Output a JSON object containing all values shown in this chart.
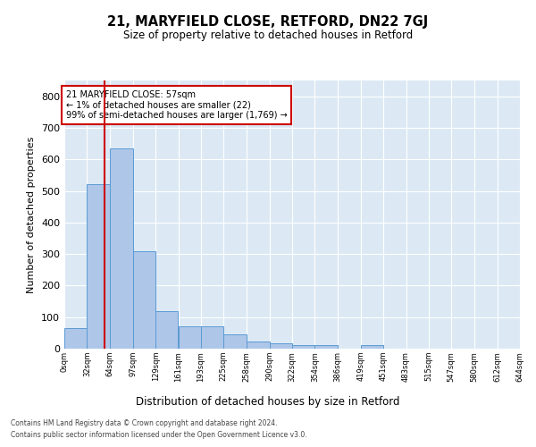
{
  "title": "21, MARYFIELD CLOSE, RETFORD, DN22 7GJ",
  "subtitle": "Size of property relative to detached houses in Retford",
  "xlabel": "Distribution of detached houses by size in Retford",
  "ylabel": "Number of detached properties",
  "footer_line1": "Contains HM Land Registry data © Crown copyright and database right 2024.",
  "footer_line2": "Contains public sector information licensed under the Open Government Licence v3.0.",
  "annotation_title": "21 MARYFIELD CLOSE: 57sqm",
  "annotation_line2": "← 1% of detached houses are smaller (22)",
  "annotation_line3": "99% of semi-detached houses are larger (1,769) →",
  "property_size": 57,
  "bar_color": "#aec6e8",
  "bar_edge_color": "#5b9bd5",
  "marker_color": "#cc0000",
  "annotation_box_color": "#cc0000",
  "bg_color": "#dce9f5",
  "bins": [
    0,
    32,
    64,
    97,
    129,
    161,
    193,
    225,
    258,
    290,
    322,
    354,
    386,
    419,
    451,
    483,
    515,
    547,
    580,
    612,
    644
  ],
  "bin_labels": [
    "0sqm",
    "32sqm",
    "64sqm",
    "97sqm",
    "129sqm",
    "161sqm",
    "193sqm",
    "225sqm",
    "258sqm",
    "290sqm",
    "322sqm",
    "354sqm",
    "386sqm",
    "419sqm",
    "451sqm",
    "483sqm",
    "515sqm",
    "547sqm",
    "580sqm",
    "612sqm",
    "644sqm"
  ],
  "bar_heights": [
    65,
    520,
    635,
    310,
    120,
    70,
    70,
    45,
    22,
    18,
    10,
    10,
    0,
    10,
    0,
    0,
    0,
    0,
    0,
    0
  ],
  "ylim": [
    0,
    850
  ],
  "yticks": [
    0,
    100,
    200,
    300,
    400,
    500,
    600,
    700,
    800
  ]
}
